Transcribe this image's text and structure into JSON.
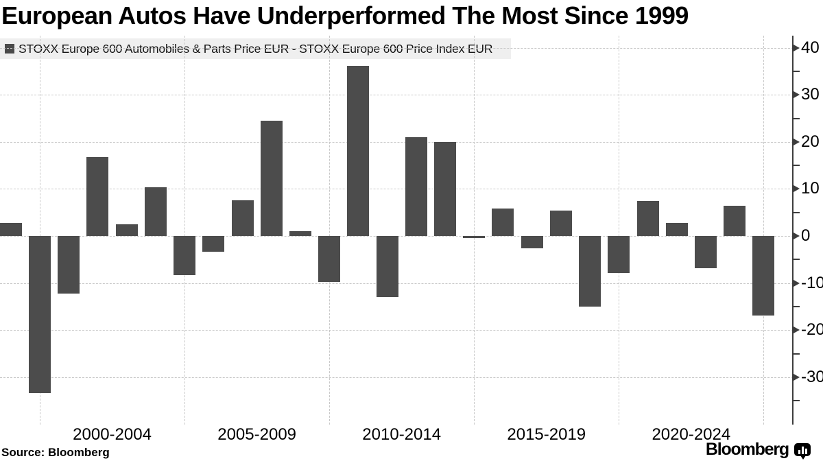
{
  "title": "European Autos Have Underperformed The Most Since 1999",
  "legend": {
    "label": "STOXX Europe 600 Automobiles & Parts Price EUR - STOXX Europe 600 Price Index EUR"
  },
  "source": "Source: Bloomberg",
  "branding": {
    "wordmark": "Bloomberg",
    "icon": "bloomberg-terminal-icon"
  },
  "colors": {
    "bar": "#4c4c4c",
    "legend_background": "#efefef",
    "gridline": "#c8c8c8",
    "axis": "#3d3d3d",
    "text": "#000000"
  },
  "chart_data": {
    "type": "bar",
    "title": "European Autos Have Underperformed The Most Since 1999",
    "series_name": "STOXX Europe 600 Automobiles & Parts Price EUR - STOXX Europe 600 Price Index EUR",
    "x": [
      1999,
      2000,
      2001,
      2002,
      2003,
      2004,
      2005,
      2006,
      2007,
      2008,
      2009,
      2010,
      2011,
      2012,
      2013,
      2014,
      2015,
      2016,
      2017,
      2018,
      2019,
      2020,
      2021,
      2022,
      2023,
      2024,
      2025
    ],
    "values": [
      2.8,
      -33.4,
      -12.3,
      16.7,
      2.5,
      10.3,
      -8.3,
      -3.4,
      7.6,
      24.5,
      1.0,
      -9.7,
      36.2,
      -13.0,
      21.0,
      20.0,
      -0.5,
      5.9,
      -2.6,
      5.4,
      -15.0,
      -7.8,
      7.5,
      2.8,
      -6.9,
      6.4,
      -16.9
    ],
    "xlabel": "",
    "ylabel": "",
    "ylim": [
      -40,
      42.5
    ],
    "yticks": [
      40,
      30,
      20,
      10,
      0,
      -10,
      -20,
      -30
    ],
    "minor_yticks": [
      35,
      25,
      15,
      5,
      -5,
      -15,
      -25,
      -35
    ],
    "x_group_labels": [
      "2000-2004",
      "2005-2009",
      "2010-2014",
      "2015-2019",
      "2020-2024"
    ],
    "x_gridline_years": [
      2000,
      2005,
      2010,
      2015,
      2020,
      2025
    ],
    "grid": true,
    "axis_side": "right",
    "legend_position": "top-left"
  }
}
